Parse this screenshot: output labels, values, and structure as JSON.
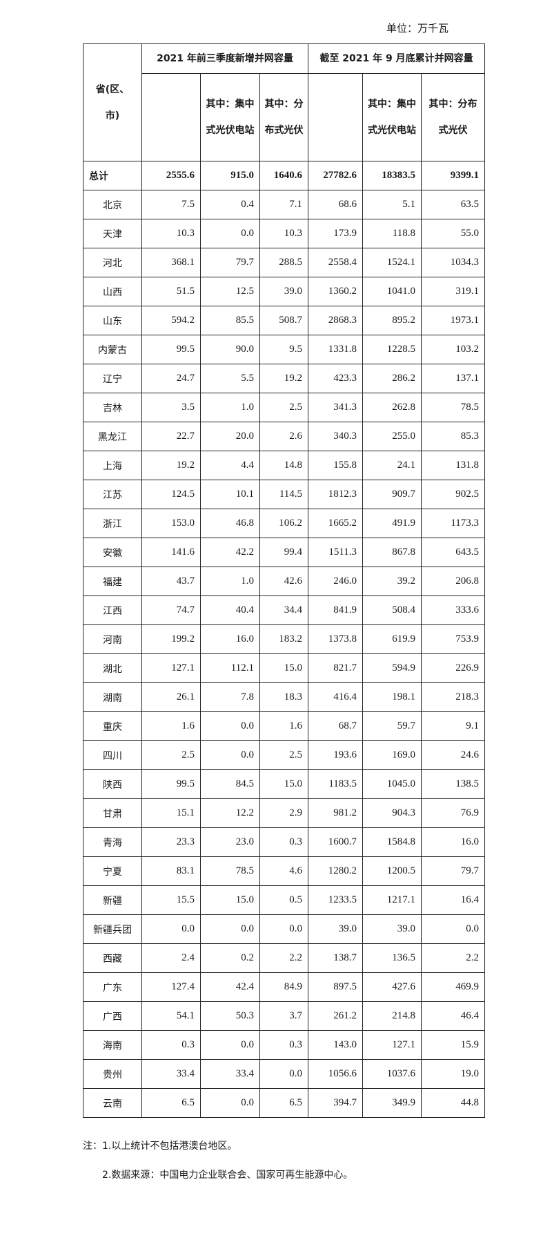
{
  "unit_label": "单位：万千瓦",
  "header": {
    "province": "省(区、市)",
    "group1": "2021 年前三季度新增并网容量",
    "group2": "截至 2021 年 9 月底累计并网容量",
    "sub": [
      "",
      "其中：集中式光伏电站",
      "其中：分布式光伏",
      "",
      "其中：集中式光伏电站",
      "其中：分布式光伏"
    ]
  },
  "total": {
    "name": "总计",
    "values": [
      "2555.6",
      "915.0",
      "1640.6",
      "27782.6",
      "18383.5",
      "9399.1"
    ]
  },
  "rows": [
    {
      "name": "北京",
      "values": [
        "7.5",
        "0.4",
        "7.1",
        "68.6",
        "5.1",
        "63.5"
      ]
    },
    {
      "name": "天津",
      "values": [
        "10.3",
        "0.0",
        "10.3",
        "173.9",
        "118.8",
        "55.0"
      ]
    },
    {
      "name": "河北",
      "values": [
        "368.1",
        "79.7",
        "288.5",
        "2558.4",
        "1524.1",
        "1034.3"
      ]
    },
    {
      "name": "山西",
      "values": [
        "51.5",
        "12.5",
        "39.0",
        "1360.2",
        "1041.0",
        "319.1"
      ]
    },
    {
      "name": "山东",
      "values": [
        "594.2",
        "85.5",
        "508.7",
        "2868.3",
        "895.2",
        "1973.1"
      ]
    },
    {
      "name": "内蒙古",
      "values": [
        "99.5",
        "90.0",
        "9.5",
        "1331.8",
        "1228.5",
        "103.2"
      ]
    },
    {
      "name": "辽宁",
      "values": [
        "24.7",
        "5.5",
        "19.2",
        "423.3",
        "286.2",
        "137.1"
      ]
    },
    {
      "name": "吉林",
      "values": [
        "3.5",
        "1.0",
        "2.5",
        "341.3",
        "262.8",
        "78.5"
      ]
    },
    {
      "name": "黑龙江",
      "values": [
        "22.7",
        "20.0",
        "2.6",
        "340.3",
        "255.0",
        "85.3"
      ]
    },
    {
      "name": "上海",
      "values": [
        "19.2",
        "4.4",
        "14.8",
        "155.8",
        "24.1",
        "131.8"
      ]
    },
    {
      "name": "江苏",
      "values": [
        "124.5",
        "10.1",
        "114.5",
        "1812.3",
        "909.7",
        "902.5"
      ]
    },
    {
      "name": "浙江",
      "values": [
        "153.0",
        "46.8",
        "106.2",
        "1665.2",
        "491.9",
        "1173.3"
      ]
    },
    {
      "name": "安徽",
      "values": [
        "141.6",
        "42.2",
        "99.4",
        "1511.3",
        "867.8",
        "643.5"
      ]
    },
    {
      "name": "福建",
      "values": [
        "43.7",
        "1.0",
        "42.6",
        "246.0",
        "39.2",
        "206.8"
      ]
    },
    {
      "name": "江西",
      "values": [
        "74.7",
        "40.4",
        "34.4",
        "841.9",
        "508.4",
        "333.6"
      ]
    },
    {
      "name": "河南",
      "values": [
        "199.2",
        "16.0",
        "183.2",
        "1373.8",
        "619.9",
        "753.9"
      ]
    },
    {
      "name": "湖北",
      "values": [
        "127.1",
        "112.1",
        "15.0",
        "821.7",
        "594.9",
        "226.9"
      ]
    },
    {
      "name": "湖南",
      "values": [
        "26.1",
        "7.8",
        "18.3",
        "416.4",
        "198.1",
        "218.3"
      ]
    },
    {
      "name": "重庆",
      "values": [
        "1.6",
        "0.0",
        "1.6",
        "68.7",
        "59.7",
        "9.1"
      ]
    },
    {
      "name": "四川",
      "values": [
        "2.5",
        "0.0",
        "2.5",
        "193.6",
        "169.0",
        "24.6"
      ]
    },
    {
      "name": "陕西",
      "values": [
        "99.5",
        "84.5",
        "15.0",
        "1183.5",
        "1045.0",
        "138.5"
      ]
    },
    {
      "name": "甘肃",
      "values": [
        "15.1",
        "12.2",
        "2.9",
        "981.2",
        "904.3",
        "76.9"
      ]
    },
    {
      "name": "青海",
      "values": [
        "23.3",
        "23.0",
        "0.3",
        "1600.7",
        "1584.8",
        "16.0"
      ]
    },
    {
      "name": "宁夏",
      "values": [
        "83.1",
        "78.5",
        "4.6",
        "1280.2",
        "1200.5",
        "79.7"
      ]
    },
    {
      "name": "新疆",
      "values": [
        "15.5",
        "15.0",
        "0.5",
        "1233.5",
        "1217.1",
        "16.4"
      ]
    },
    {
      "name": "新疆兵团",
      "values": [
        "0.0",
        "0.0",
        "0.0",
        "39.0",
        "39.0",
        "0.0"
      ]
    },
    {
      "name": "西藏",
      "values": [
        "2.4",
        "0.2",
        "2.2",
        "138.7",
        "136.5",
        "2.2"
      ]
    },
    {
      "name": "广东",
      "values": [
        "127.4",
        "42.4",
        "84.9",
        "897.5",
        "427.6",
        "469.9"
      ]
    },
    {
      "name": "广西",
      "values": [
        "54.1",
        "50.3",
        "3.7",
        "261.2",
        "214.8",
        "46.4"
      ]
    },
    {
      "name": "海南",
      "values": [
        "0.3",
        "0.0",
        "0.3",
        "143.0",
        "127.1",
        "15.9"
      ]
    },
    {
      "name": "贵州",
      "values": [
        "33.4",
        "33.4",
        "0.0",
        "1056.6",
        "1037.6",
        "19.0"
      ]
    },
    {
      "name": "云南",
      "values": [
        "6.5",
        "0.0",
        "6.5",
        "394.7",
        "349.9",
        "44.8"
      ]
    }
  ],
  "notes": [
    "注：1.以上统计不包括港澳台地区。",
    "2.数据来源：中国电力企业联合会、国家可再生能源中心。"
  ]
}
